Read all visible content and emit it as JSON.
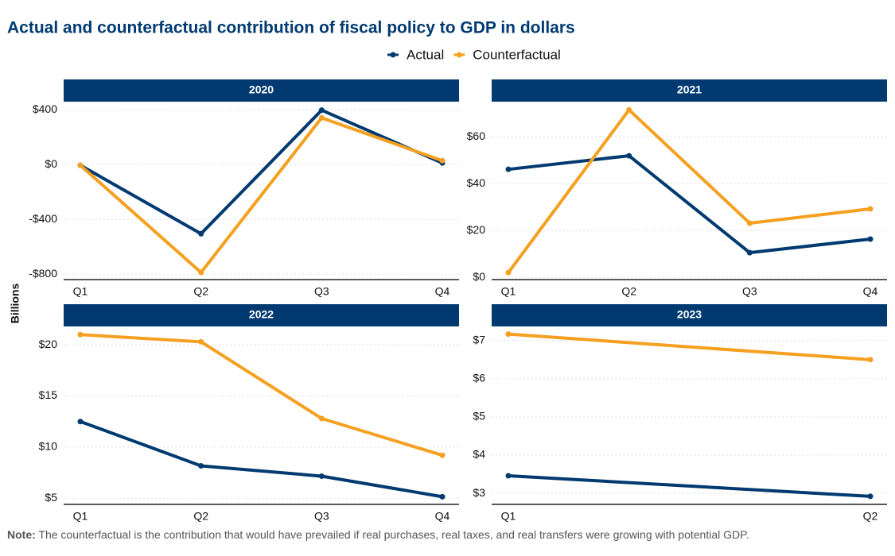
{
  "title": "Actual and counterfactual  contribution  of fiscal policy to GDP in dollars",
  "ylabel": "Billions",
  "note": {
    "label": "Note:",
    "text": "The counterfactual is the contribution that would have prevailed if real purchases, real taxes, and real transfers were growing with potential GDP."
  },
  "chart_data": [
    {
      "type": "line",
      "title": "2020",
      "categories": [
        "Q1",
        "Q2",
        "Q3",
        "Q4"
      ],
      "series": [
        {
          "name": "Actual",
          "color": "#003a70",
          "values": [
            -5,
            -505,
            398,
            12
          ]
        },
        {
          "name": "Counterfactual",
          "color": "#f5a020",
          "values": [
            -5,
            -788,
            342,
            29
          ]
        }
      ],
      "ylim": [
        -840,
        460
      ],
      "yticks": [
        {
          "value": -800,
          "label": "-$800"
        },
        {
          "value": -400,
          "label": "-$400"
        },
        {
          "value": 0,
          "label": "$0"
        },
        {
          "value": 400,
          "label": "$400"
        }
      ],
      "grid": true
    },
    {
      "type": "line",
      "title": "2021",
      "categories": [
        "Q1",
        "Q2",
        "Q3",
        "Q4"
      ],
      "series": [
        {
          "name": "Actual",
          "color": "#003a70",
          "values": [
            46.1,
            51.9,
            10.5,
            16.3
          ]
        },
        {
          "name": "Counterfactual",
          "color": "#f5a020",
          "values": [
            2.0,
            71.5,
            23.1,
            29.2
          ]
        }
      ],
      "ylim": [
        -1,
        75
      ],
      "yticks": [
        {
          "value": 0,
          "label": "$0"
        },
        {
          "value": 20,
          "label": "$20"
        },
        {
          "value": 40,
          "label": "$40"
        },
        {
          "value": 60,
          "label": "$60"
        }
      ],
      "grid": true
    },
    {
      "type": "line",
      "title": "2022",
      "categories": [
        "Q1",
        "Q2",
        "Q3",
        "Q4"
      ],
      "series": [
        {
          "name": "Actual",
          "color": "#003a70",
          "values": [
            12.5,
            8.17,
            7.16,
            5.15
          ]
        },
        {
          "name": "Counterfactual",
          "color": "#f5a020",
          "values": [
            21.0,
            20.3,
            12.8,
            9.2
          ]
        }
      ],
      "ylim": [
        4.4,
        21.8
      ],
      "yticks": [
        {
          "value": 5,
          "label": "$5"
        },
        {
          "value": 10,
          "label": "$10"
        },
        {
          "value": 15,
          "label": "$15"
        },
        {
          "value": 20,
          "label": "$20"
        }
      ],
      "grid": true
    },
    {
      "type": "line",
      "title": "2023",
      "categories": [
        "Q1",
        "Q2"
      ],
      "series": [
        {
          "name": "Actual",
          "color": "#003a70",
          "values": [
            3.46,
            2.92
          ]
        },
        {
          "name": "Counterfactual",
          "color": "#f5a020",
          "values": [
            7.17,
            6.5
          ]
        }
      ],
      "ylim": [
        2.71,
        7.37
      ],
      "yticks": [
        {
          "value": 3,
          "label": "$3"
        },
        {
          "value": 4,
          "label": "$4"
        },
        {
          "value": 5,
          "label": "$5"
        },
        {
          "value": 6,
          "label": "$6"
        },
        {
          "value": 7,
          "label": "$7"
        }
      ],
      "grid": true
    }
  ]
}
